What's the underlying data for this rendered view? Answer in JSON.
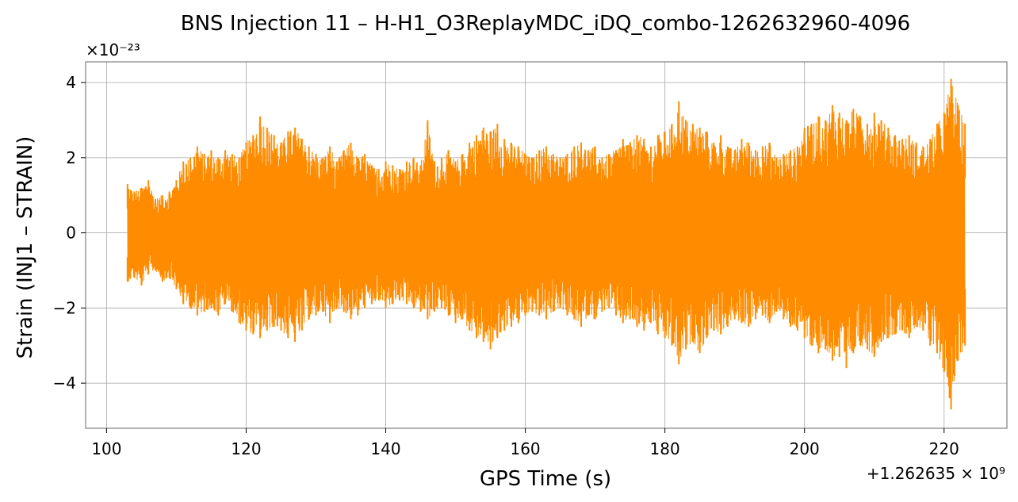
{
  "chart_data": {
    "type": "line",
    "title": "BNS Injection 11 – H-H1_O3ReplayMDC_iDQ_combo-1262632960-4096",
    "xlabel": "GPS Time (s)",
    "ylabel": "Strain (INJ1 – STRAIN)",
    "y_scale_label": "×10⁻²³",
    "x_offset_label": "+1.262635 × 10⁹",
    "y_multiplier": 1e-23,
    "x_offset": 1262635000,
    "xlim": [
      97,
      229
    ],
    "ylim": [
      -5.2,
      4.55
    ],
    "x_ticks": [
      100,
      120,
      140,
      160,
      180,
      200,
      220
    ],
    "x_tick_labels": [
      "100",
      "120",
      "140",
      "160",
      "180",
      "200",
      "220"
    ],
    "y_ticks": [
      -4,
      -2,
      0,
      2,
      4
    ],
    "y_tick_labels": [
      "−4",
      "−2",
      "0",
      "2",
      "4"
    ],
    "grid": true,
    "legend": "none",
    "colors": {
      "line": "#ff8c00",
      "grid": "#b0b0b0",
      "frame": "#808080"
    },
    "series": [
      {
        "color": "#ff8c00",
        "x_range": [
          103,
          223
        ],
        "upper_envelope": [
          [
            103,
            1.3
          ],
          [
            104,
            1.1
          ],
          [
            105,
            1.2
          ],
          [
            106,
            1.4
          ],
          [
            107,
            0.9
          ],
          [
            108,
            1.0
          ],
          [
            109,
            1.1
          ],
          [
            110,
            1.4
          ],
          [
            111,
            1.9
          ],
          [
            112,
            2.0
          ],
          [
            113,
            2.3
          ],
          [
            114,
            2.1
          ],
          [
            115,
            2.2
          ],
          [
            116,
            2.0
          ],
          [
            117,
            2.2
          ],
          [
            118,
            2.1
          ],
          [
            119,
            2.0
          ],
          [
            120,
            2.4
          ],
          [
            121,
            2.6
          ],
          [
            122,
            3.1
          ],
          [
            123,
            2.8
          ],
          [
            124,
            2.6
          ],
          [
            125,
            2.4
          ],
          [
            126,
            2.7
          ],
          [
            127,
            2.8
          ],
          [
            128,
            2.5
          ],
          [
            129,
            2.3
          ],
          [
            130,
            2.1
          ],
          [
            131,
            2.0
          ],
          [
            132,
            2.3
          ],
          [
            133,
            1.9
          ],
          [
            134,
            2.2
          ],
          [
            135,
            2.4
          ],
          [
            136,
            2.0
          ],
          [
            137,
            2.1
          ],
          [
            138,
            1.8
          ],
          [
            139,
            1.7
          ],
          [
            140,
            1.9
          ],
          [
            141,
            1.8
          ],
          [
            142,
            1.7
          ],
          [
            143,
            1.9
          ],
          [
            144,
            2.0
          ],
          [
            145,
            1.8
          ],
          [
            146,
            3.0
          ],
          [
            147,
            1.9
          ],
          [
            148,
            2.0
          ],
          [
            149,
            2.2
          ],
          [
            150,
            1.9
          ],
          [
            151,
            2.1
          ],
          [
            152,
            2.4
          ],
          [
            153,
            2.6
          ],
          [
            154,
            2.8
          ],
          [
            155,
            2.7
          ],
          [
            156,
            2.9
          ],
          [
            157,
            2.5
          ],
          [
            158,
            2.4
          ],
          [
            159,
            2.3
          ],
          [
            160,
            2.1
          ],
          [
            161,
            2.0
          ],
          [
            162,
            2.2
          ],
          [
            163,
            2.3
          ],
          [
            164,
            2.1
          ],
          [
            165,
            2.0
          ],
          [
            166,
            2.1
          ],
          [
            167,
            2.3
          ],
          [
            168,
            2.4
          ],
          [
            169,
            2.2
          ],
          [
            170,
            2.3
          ],
          [
            171,
            2.0
          ],
          [
            172,
            2.1
          ],
          [
            173,
            2.2
          ],
          [
            174,
            2.5
          ],
          [
            175,
            2.4
          ],
          [
            176,
            2.6
          ],
          [
            177,
            2.5
          ],
          [
            178,
            2.3
          ],
          [
            179,
            2.6
          ],
          [
            180,
            2.7
          ],
          [
            181,
            2.9
          ],
          [
            182,
            3.5
          ],
          [
            183,
            3.0
          ],
          [
            184,
            2.9
          ],
          [
            185,
            2.8
          ],
          [
            186,
            2.7
          ],
          [
            187,
            2.4
          ],
          [
            188,
            2.6
          ],
          [
            189,
            2.3
          ],
          [
            190,
            2.2
          ],
          [
            191,
            2.5
          ],
          [
            192,
            2.4
          ],
          [
            193,
            2.2
          ],
          [
            194,
            2.3
          ],
          [
            195,
            2.4
          ],
          [
            196,
            2.0
          ],
          [
            197,
            2.1
          ],
          [
            198,
            2.2
          ],
          [
            199,
            2.3
          ],
          [
            200,
            2.8
          ],
          [
            201,
            2.9
          ],
          [
            202,
            3.1
          ],
          [
            203,
            3.0
          ],
          [
            204,
            3.4
          ],
          [
            205,
            3.2
          ],
          [
            206,
            3.0
          ],
          [
            207,
            3.3
          ],
          [
            208,
            3.1
          ],
          [
            209,
            2.9
          ],
          [
            210,
            3.2
          ],
          [
            211,
            3.0
          ],
          [
            212,
            2.8
          ],
          [
            213,
            2.6
          ],
          [
            214,
            2.5
          ],
          [
            215,
            2.6
          ],
          [
            216,
            2.4
          ],
          [
            217,
            2.3
          ],
          [
            218,
            2.5
          ],
          [
            219,
            2.9
          ],
          [
            220,
            3.2
          ],
          [
            221,
            4.1
          ],
          [
            222,
            3.4
          ],
          [
            223,
            2.9
          ]
        ],
        "lower_envelope": [
          [
            103,
            -1.3
          ],
          [
            104,
            -1.2
          ],
          [
            105,
            -1.4
          ],
          [
            106,
            -1.1
          ],
          [
            107,
            -1.0
          ],
          [
            108,
            -1.3
          ],
          [
            109,
            -1.2
          ],
          [
            110,
            -1.5
          ],
          [
            111,
            -1.9
          ],
          [
            112,
            -2.0
          ],
          [
            113,
            -2.2
          ],
          [
            114,
            -2.1
          ],
          [
            115,
            -2.0
          ],
          [
            116,
            -2.2
          ],
          [
            117,
            -1.9
          ],
          [
            118,
            -2.1
          ],
          [
            119,
            -2.4
          ],
          [
            120,
            -2.6
          ],
          [
            121,
            -2.7
          ],
          [
            122,
            -2.8
          ],
          [
            123,
            -2.6
          ],
          [
            124,
            -2.5
          ],
          [
            125,
            -2.6
          ],
          [
            126,
            -2.8
          ],
          [
            127,
            -2.9
          ],
          [
            128,
            -2.6
          ],
          [
            129,
            -2.3
          ],
          [
            130,
            -2.2
          ],
          [
            131,
            -2.1
          ],
          [
            132,
            -2.4
          ],
          [
            133,
            -2.0
          ],
          [
            134,
            -2.1
          ],
          [
            135,
            -2.3
          ],
          [
            136,
            -2.2
          ],
          [
            137,
            -2.0
          ],
          [
            138,
            -1.9
          ],
          [
            139,
            -1.8
          ],
          [
            140,
            -2.0
          ],
          [
            141,
            -1.9
          ],
          [
            142,
            -1.8
          ],
          [
            143,
            -1.9
          ],
          [
            144,
            -2.0
          ],
          [
            145,
            -2.1
          ],
          [
            146,
            -2.3
          ],
          [
            147,
            -2.1
          ],
          [
            148,
            -2.0
          ],
          [
            149,
            -2.2
          ],
          [
            150,
            -2.4
          ],
          [
            151,
            -2.3
          ],
          [
            152,
            -2.6
          ],
          [
            153,
            -2.8
          ],
          [
            154,
            -2.9
          ],
          [
            155,
            -3.1
          ],
          [
            156,
            -2.8
          ],
          [
            157,
            -2.6
          ],
          [
            158,
            -2.5
          ],
          [
            159,
            -2.4
          ],
          [
            160,
            -2.2
          ],
          [
            161,
            -2.1
          ],
          [
            162,
            -2.2
          ],
          [
            163,
            -2.3
          ],
          [
            164,
            -2.1
          ],
          [
            165,
            -2.0
          ],
          [
            166,
            -2.2
          ],
          [
            167,
            -2.3
          ],
          [
            168,
            -2.5
          ],
          [
            169,
            -2.2
          ],
          [
            170,
            -2.3
          ],
          [
            171,
            -2.1
          ],
          [
            172,
            -2.0
          ],
          [
            173,
            -2.2
          ],
          [
            174,
            -2.4
          ],
          [
            175,
            -2.3
          ],
          [
            176,
            -2.5
          ],
          [
            177,
            -2.6
          ],
          [
            178,
            -2.4
          ],
          [
            179,
            -2.7
          ],
          [
            180,
            -2.8
          ],
          [
            181,
            -3.0
          ],
          [
            182,
            -3.5
          ],
          [
            183,
            -3.1
          ],
          [
            184,
            -2.9
          ],
          [
            185,
            -3.2
          ],
          [
            186,
            -2.8
          ],
          [
            187,
            -2.6
          ],
          [
            188,
            -2.7
          ],
          [
            189,
            -2.5
          ],
          [
            190,
            -2.3
          ],
          [
            191,
            -2.4
          ],
          [
            192,
            -2.5
          ],
          [
            193,
            -2.3
          ],
          [
            194,
            -2.2
          ],
          [
            195,
            -2.4
          ],
          [
            196,
            -2.1
          ],
          [
            197,
            -2.3
          ],
          [
            198,
            -2.5
          ],
          [
            199,
            -2.6
          ],
          [
            200,
            -2.8
          ],
          [
            201,
            -3.0
          ],
          [
            202,
            -3.2
          ],
          [
            203,
            -3.1
          ],
          [
            204,
            -3.4
          ],
          [
            205,
            -3.3
          ],
          [
            206,
            -3.6
          ],
          [
            207,
            -3.2
          ],
          [
            208,
            -3.0
          ],
          [
            209,
            -3.1
          ],
          [
            210,
            -3.3
          ],
          [
            211,
            -2.9
          ],
          [
            212,
            -2.8
          ],
          [
            213,
            -2.7
          ],
          [
            214,
            -2.6
          ],
          [
            215,
            -2.8
          ],
          [
            216,
            -2.5
          ],
          [
            217,
            -2.6
          ],
          [
            218,
            -3.0
          ],
          [
            219,
            -3.2
          ],
          [
            220,
            -3.7
          ],
          [
            221,
            -4.7
          ],
          [
            222,
            -3.4
          ],
          [
            223,
            -3.0
          ]
        ]
      }
    ]
  }
}
